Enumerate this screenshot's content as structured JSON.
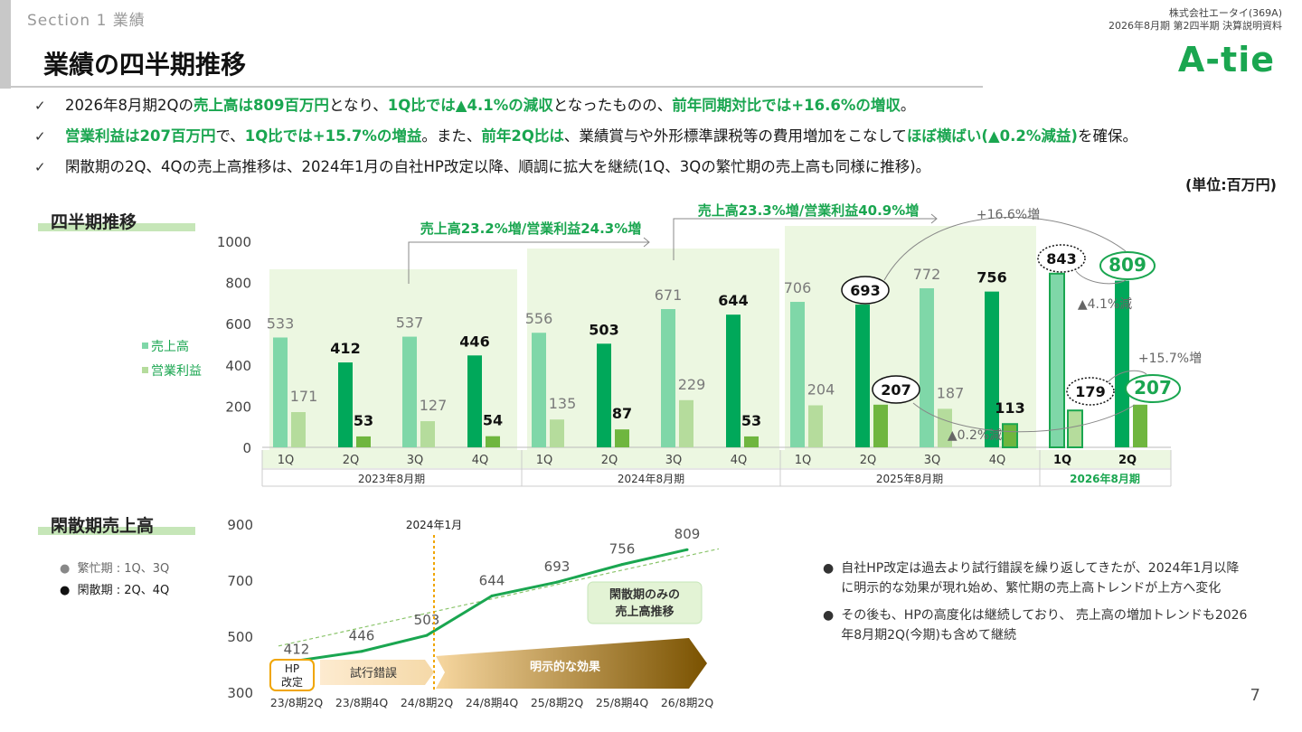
{
  "header": {
    "section": "Section 1 業績",
    "title": "業績の四半期推移",
    "company": "株式会社エータイ(369A)",
    "doc": "2026年8月期 第2四半期 決算説明資料",
    "logo": "A-tie"
  },
  "bullets": [
    {
      "check": "✓",
      "parts": [
        [
          "2026年8月期2Qの",
          false
        ],
        [
          "売上高は809百万円",
          true
        ],
        [
          "となり、",
          false
        ],
        [
          "1Q比では▲4.1%の減収",
          true
        ],
        [
          "となったものの、",
          false
        ],
        [
          "前年同期対比では+16.6%の増収",
          true
        ],
        [
          "。",
          false
        ]
      ]
    },
    {
      "check": "✓",
      "parts": [
        [
          "営業利益は207百万円",
          true
        ],
        [
          "で、",
          false
        ],
        [
          "1Q比では+15.7%の増益",
          true
        ],
        [
          "。また、",
          false
        ],
        [
          "前年2Q比は",
          true
        ],
        [
          "、業績賞与や外形標準課税等の費用増加をこなして",
          false
        ],
        [
          "ほぼ横ばい(▲0.2%減益)",
          true
        ],
        [
          "を確保。",
          false
        ]
      ]
    },
    {
      "check": "✓",
      "parts": [
        [
          "閑散期の2Q、4Qの売上高推移は、2024年1月の自社HP改定以降、順調に拡大を継続(1Q、3Qの繁忙期の売上高も同様に推移)。",
          false
        ]
      ]
    }
  ],
  "unit": "(単位:百万円)",
  "section1_title": "四半期推移",
  "section2_title": "閑散期売上高",
  "legend1": {
    "sales": "売上高",
    "profit": "営業利益"
  },
  "legend2": {
    "busy": "繁忙期 : 1Q、3Q",
    "slow": "閑散期 : 2Q、4Q"
  },
  "notes": [
    "自社HP改定は過去より試行錯誤を繰り返してきたが、2024年1月以降に明示的な効果が現れ始め、繁忙期の売上高トレンドが上方へ変化",
    "その後も、HPの高度化は継続しており、 売上高の増加トレンドも2026年8月期2Q(今期)も含めて継続"
  ],
  "page_number": "7",
  "colors": {
    "accent": "#1aa650",
    "sales_light": "#7fd7a8",
    "sales_dark": "#00a85a",
    "profit_light": "#b5dc9c",
    "profit_dark": "#6fb63f",
    "band": "#ecf7e1",
    "gold": "#c08a00"
  },
  "chart_data": [
    {
      "type": "bar",
      "title": "四半期推移",
      "ylim": [
        0,
        1000
      ],
      "yticks": [
        0,
        200,
        400,
        600,
        800,
        1000
      ],
      "groups": [
        {
          "label": "2023年8月期",
          "quarters": [
            "1Q",
            "2Q",
            "3Q",
            "4Q"
          ]
        },
        {
          "label": "2024年8月期",
          "quarters": [
            "1Q",
            "2Q",
            "3Q",
            "4Q"
          ]
        },
        {
          "label": "2025年8月期",
          "quarters": [
            "1Q",
            "2Q",
            "3Q",
            "4Q"
          ]
        },
        {
          "label": "2026年8月期",
          "quarters": [
            "1Q",
            "2Q"
          ]
        }
      ],
      "series": [
        {
          "name": "売上高",
          "values": [
            533,
            412,
            537,
            446,
            556,
            503,
            671,
            644,
            706,
            693,
            772,
            756,
            843,
            809
          ]
        },
        {
          "name": "営業利益",
          "values": [
            171,
            53,
            127,
            54,
            135,
            87,
            229,
            53,
            204,
            207,
            187,
            113,
            179,
            207
          ]
        }
      ],
      "annotations": [
        "売上高23.2%増/営業利益24.3%増",
        "売上高23.3%増/営業利益40.9%増",
        "+16.6%増",
        "▲4.1%減",
        "+15.7%増",
        "▲0.2%減"
      ]
    },
    {
      "type": "line",
      "title": "閑散期売上高",
      "ylim": [
        300,
        900
      ],
      "yticks": [
        300,
        500,
        700,
        900
      ],
      "categories": [
        "23/8期2Q",
        "23/8期4Q",
        "24/8期2Q",
        "24/8期4Q",
        "25/8期2Q",
        "25/8期4Q",
        "26/8期2Q"
      ],
      "values": [
        412,
        446,
        503,
        644,
        693,
        756,
        809
      ],
      "annotations": [
        "2024年1月",
        "HP改定",
        "試行錯誤",
        "明示的な効果",
        "閑散期のみの売上高推移"
      ]
    }
  ]
}
